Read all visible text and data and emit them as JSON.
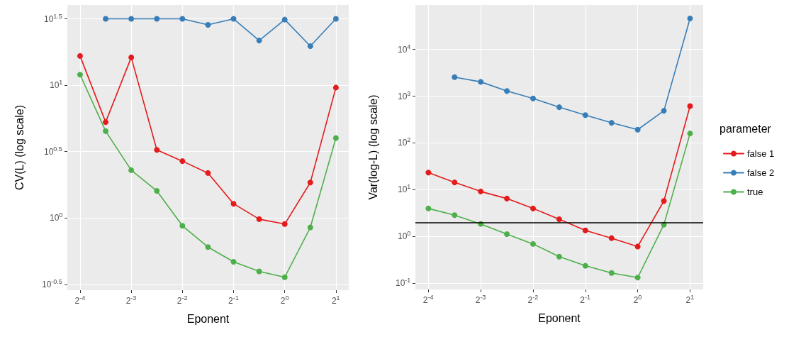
{
  "chart_data": [
    {
      "type": "line",
      "xlabel": "Eponent",
      "ylabel": "CV(L) (log scale)",
      "log": "xy",
      "grid": true,
      "marker": "circle",
      "line_style": "solid",
      "x": [
        0.0625,
        0.08839,
        0.125,
        0.17678,
        0.25,
        0.35355,
        0.5,
        0.70711,
        1,
        1.41421,
        2
      ],
      "xlim": [
        0.0526,
        2.38
      ],
      "xticks": [
        {
          "value": 0.0625,
          "label": "2$^{-4}$"
        },
        {
          "value": 0.125,
          "label": "2$^{-3}$"
        },
        {
          "value": 0.25,
          "label": "2$^{-2}$"
        },
        {
          "value": 0.5,
          "label": "2$^{-1}$"
        },
        {
          "value": 1,
          "label": "2$^{0}$"
        },
        {
          "value": 2,
          "label": "2$^{1}$"
        }
      ],
      "ylim": [
        0.286,
        40.2
      ],
      "yticks": [
        {
          "value": 0.3162,
          "label": "10$^{-0.5}$"
        },
        {
          "value": 1,
          "label": "10$^{0}$"
        },
        {
          "value": 3.162,
          "label": "10$^{0.5}$"
        },
        {
          "value": 10,
          "label": "10$^{1}$"
        },
        {
          "value": 31.62,
          "label": "10$^{1.5}$"
        }
      ],
      "series": [
        {
          "color": "#e41a1c",
          "values": [
            16.6,
            5.27,
            16.2,
            3.26,
            2.68,
            2.18,
            1.28,
            0.98,
            0.9,
            1.85,
            9.6
          ]
        },
        {
          "color": "#377eb8",
          "values": [
            null,
            31.6,
            31.6,
            31.6,
            31.6,
            28.5,
            31.6,
            21.7,
            31.2,
            19.7,
            31.6
          ]
        },
        {
          "color": "#4daf4a",
          "values": [
            12.0,
            4.51,
            2.29,
            1.6,
            0.873,
            0.604,
            0.468,
            0.396,
            0.358,
            0.849,
            4.0
          ]
        }
      ]
    },
    {
      "type": "line",
      "xlabel": "Eponent",
      "ylabel": "Var(log-L) (log scale)",
      "log": "xy",
      "grid": true,
      "marker": "circle",
      "line_style": "solid",
      "legend": "right",
      "legend_title": "parameter",
      "x": [
        0.0625,
        0.08839,
        0.125,
        0.17678,
        0.25,
        0.35355,
        0.5,
        0.70711,
        1,
        1.41421,
        2
      ],
      "xlim": [
        0.0526,
        2.38
      ],
      "xticks": [
        {
          "value": 0.0625,
          "label": "2$^{-4}$"
        },
        {
          "value": 0.125,
          "label": "2$^{-3}$"
        },
        {
          "value": 0.25,
          "label": "2$^{-2}$"
        },
        {
          "value": 0.5,
          "label": "2$^{-1}$"
        },
        {
          "value": 1,
          "label": "2$^{0}$"
        },
        {
          "value": 2,
          "label": "2$^{1}$"
        }
      ],
      "ylim": [
        0.0735,
        89000
      ],
      "yticks": [
        {
          "value": 0.1,
          "label": "10$^{-1}$"
        },
        {
          "value": 1,
          "label": "10$^{0}$"
        },
        {
          "value": 10,
          "label": "10$^{1}$"
        },
        {
          "value": 100,
          "label": "10$^{2}$"
        },
        {
          "value": 1000,
          "label": "10$^{3}$"
        },
        {
          "value": 10000,
          "label": "10$^{4}$"
        }
      ],
      "ref_lines": [
        {
          "axis": "y",
          "value": 2,
          "color": "#000000"
        }
      ],
      "series": [
        {
          "name": "false 1",
          "color": "#e41a1c",
          "values": [
            23.2,
            14.3,
            9.16,
            6.46,
            3.96,
            2.34,
            1.35,
            0.92,
            0.61,
            5.74,
            614
          ]
        },
        {
          "name": "false 2",
          "color": "#377eb8",
          "values": [
            null,
            2550,
            2020,
            1290,
            892,
            580,
            394,
            269,
            192,
            487,
            45800
          ]
        },
        {
          "name": "true",
          "color": "#4daf4a",
          "values": [
            3.96,
            2.85,
            1.85,
            1.12,
            0.69,
            0.37,
            0.236,
            0.166,
            0.132,
            1.79,
            159
          ]
        }
      ]
    }
  ]
}
